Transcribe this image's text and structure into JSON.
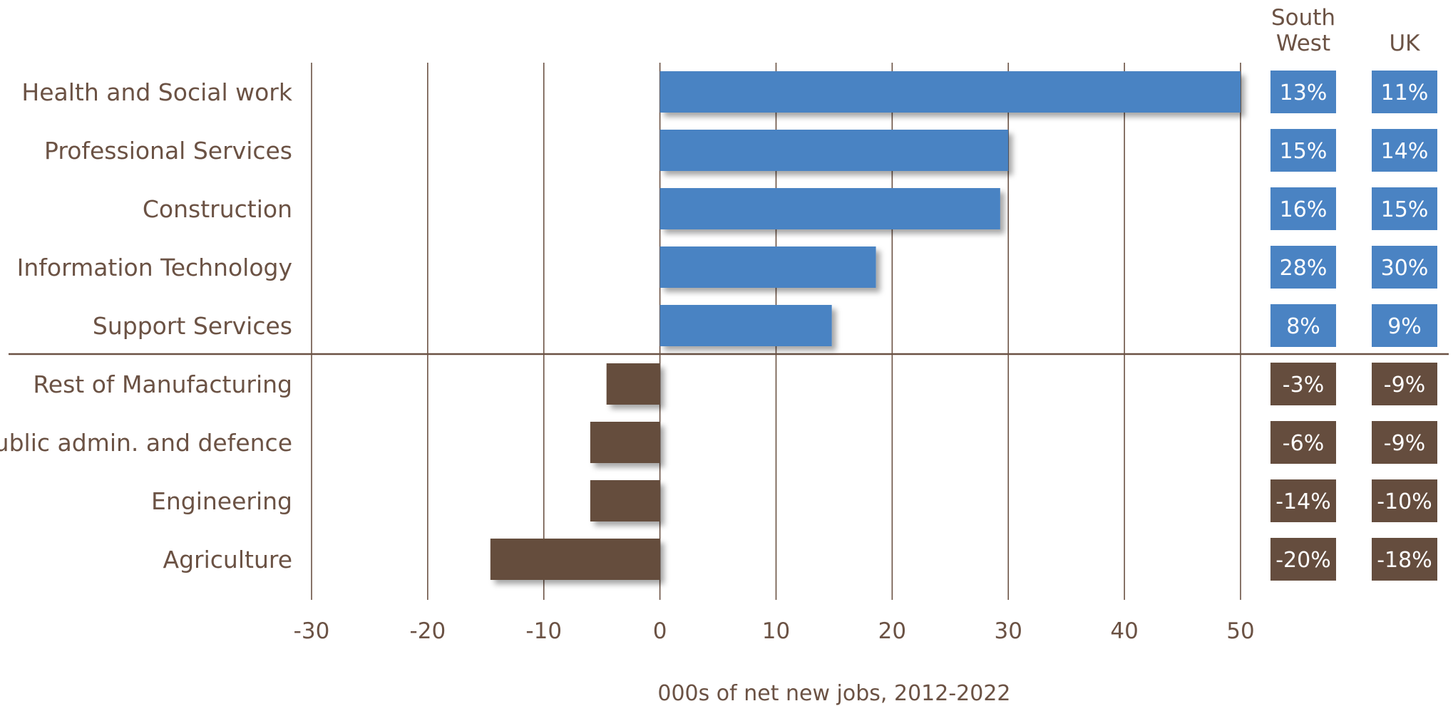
{
  "chart_data": {
    "type": "bar",
    "orientation": "horizontal",
    "title": "",
    "xlabel": "000s of net new jobs, 2012-2022",
    "ylabel": "",
    "xlim": [
      -30,
      50
    ],
    "x_ticks": [
      -30,
      -20,
      -10,
      0,
      10,
      20,
      30,
      40,
      50
    ],
    "grid": true,
    "categories": [
      "Health and Social work",
      "Professional Services",
      "Construction",
      "Information Technology",
      "Support Services",
      "Rest of Manufacturing",
      "Public admin. and defence",
      "Engineering",
      "Agriculture"
    ],
    "values": [
      50.0,
      30.0,
      29.3,
      18.6,
      14.8,
      -4.6,
      -6.0,
      -6.0,
      -14.6
    ],
    "columns": [
      {
        "header": [
          "South",
          "West"
        ],
        "values": [
          "13%",
          "15%",
          "16%",
          "28%",
          "8%",
          "-3%",
          "-6%",
          "-14%",
          "-20%"
        ]
      },
      {
        "header": [
          "UK"
        ],
        "values": [
          "11%",
          "14%",
          "15%",
          "30%",
          "9%",
          "-9%",
          "-9%",
          "-10%",
          "-18%"
        ]
      }
    ],
    "colors": {
      "positive": "#4a83c3",
      "negative": "#654d3e",
      "text": "#6b5244",
      "grid": "#6b5244",
      "box_text": "#ffffff"
    }
  }
}
